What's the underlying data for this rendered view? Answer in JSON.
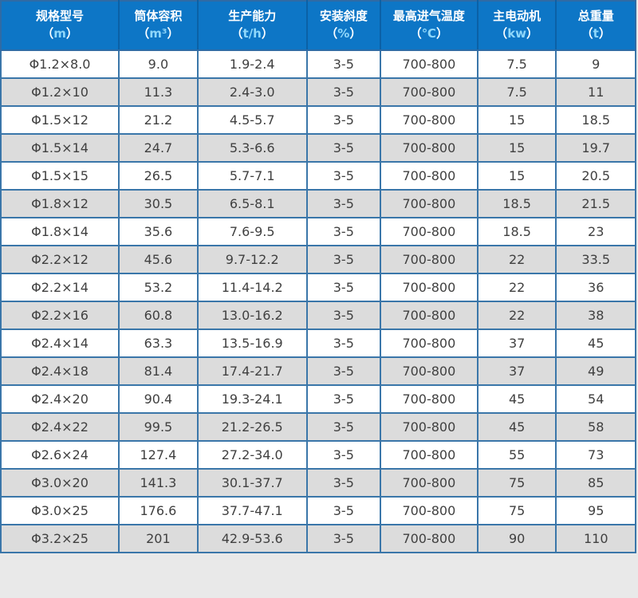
{
  "chart_data": {
    "type": "table",
    "paren_open": "（",
    "paren_close": "）",
    "columns": [
      {
        "name": "规格型号",
        "unit": "m"
      },
      {
        "name": "筒体容积",
        "unit": "m³"
      },
      {
        "name": "生产能力",
        "unit": "t/h"
      },
      {
        "name": "安装斜度",
        "unit": "%"
      },
      {
        "name": "最高进气温度",
        "unit": "℃"
      },
      {
        "name": "主电动机",
        "unit": "kw"
      },
      {
        "name": "总重量",
        "unit": "t"
      }
    ],
    "rows": [
      [
        "Φ1.2×8.0",
        "9.0",
        "1.9-2.4",
        "3-5",
        "700-800",
        "7.5",
        "9"
      ],
      [
        "Φ1.2×10",
        "11.3",
        "2.4-3.0",
        "3-5",
        "700-800",
        "7.5",
        "11"
      ],
      [
        "Φ1.5×12",
        "21.2",
        "4.5-5.7",
        "3-5",
        "700-800",
        "15",
        "18.5"
      ],
      [
        "Φ1.5×14",
        "24.7",
        "5.3-6.6",
        "3-5",
        "700-800",
        "15",
        "19.7"
      ],
      [
        "Φ1.5×15",
        "26.5",
        "5.7-7.1",
        "3-5",
        "700-800",
        "15",
        "20.5"
      ],
      [
        "Φ1.8×12",
        "30.5",
        "6.5-8.1",
        "3-5",
        "700-800",
        "18.5",
        "21.5"
      ],
      [
        "Φ1.8×14",
        "35.6",
        "7.6-9.5",
        "3-5",
        "700-800",
        "18.5",
        "23"
      ],
      [
        "Φ2.2×12",
        "45.6",
        "9.7-12.2",
        "3-5",
        "700-800",
        "22",
        "33.5"
      ],
      [
        "Φ2.2×14",
        "53.2",
        "11.4-14.2",
        "3-5",
        "700-800",
        "22",
        "36"
      ],
      [
        "Φ2.2×16",
        "60.8",
        "13.0-16.2",
        "3-5",
        "700-800",
        "22",
        "38"
      ],
      [
        "Φ2.4×14",
        "63.3",
        "13.5-16.9",
        "3-5",
        "700-800",
        "37",
        "45"
      ],
      [
        "Φ2.4×18",
        "81.4",
        "17.4-21.7",
        "3-5",
        "700-800",
        "37",
        "49"
      ],
      [
        "Φ2.4×20",
        "90.4",
        "19.3-24.1",
        "3-5",
        "700-800",
        "45",
        "54"
      ],
      [
        "Φ2.4×22",
        "99.5",
        "21.2-26.5",
        "3-5",
        "700-800",
        "45",
        "58"
      ],
      [
        "Φ2.6×24",
        "127.4",
        "27.2-34.0",
        "3-5",
        "700-800",
        "55",
        "73"
      ],
      [
        "Φ3.0×20",
        "141.3",
        "30.1-37.7",
        "3-5",
        "700-800",
        "75",
        "85"
      ],
      [
        "Φ3.0×25",
        "176.6",
        "37.7-47.1",
        "3-5",
        "700-800",
        "75",
        "95"
      ],
      [
        "Φ3.2×25",
        "201",
        "42.9-53.6",
        "3-5",
        "700-800",
        "90",
        "110"
      ]
    ]
  },
  "colors": {
    "header_bg": "#0d76c6",
    "header_text": "#ffffff",
    "unit_text": "#8fd7fa",
    "header_divider": "#0b61a6",
    "border": "#3a76a9",
    "outer_border": "#2f6ba5",
    "row_bg": "#ffffff",
    "row_alt_bg": "#dcdcdc",
    "body_text": "#404040",
    "page_bg": "#e9e9e9"
  }
}
